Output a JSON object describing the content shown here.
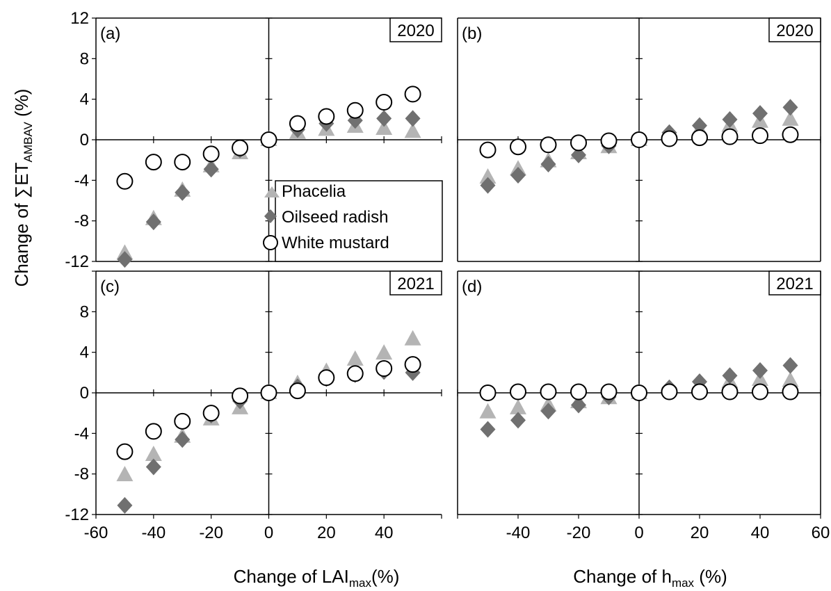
{
  "figure": {
    "ylabel_main": "Change of ∑ET",
    "ylabel_sub": "AMBAV",
    "ylabel_unit": " (%)",
    "xlabel_left_main": "Change of LAI",
    "xlabel_left_sub": "max",
    "xlabel_left_unit": "(%)",
    "xlabel_right_main": "Change of h",
    "xlabel_right_sub": "max",
    "xlabel_right_unit": " (%)"
  },
  "legend": {
    "items": [
      {
        "label": "Phacelia",
        "marker": "triangle",
        "color": "#b4b4b4"
      },
      {
        "label": "Oilseed radish",
        "marker": "diamond",
        "color": "#707070"
      },
      {
        "label": "White mustard",
        "marker": "circle-open",
        "color": "#000000"
      }
    ]
  },
  "chart_data": [
    {
      "type": "scatter",
      "panel_label": "(a)",
      "year": "2020",
      "x": [
        -50,
        -40,
        -30,
        -20,
        -10,
        0,
        10,
        20,
        30,
        40,
        50
      ],
      "xlim": [
        -60,
        60
      ],
      "ylim": [
        -12,
        12
      ],
      "yticks": [
        -12,
        -8,
        -4,
        0,
        4,
        8,
        12
      ],
      "xticks": [],
      "series": [
        {
          "name": "Phacelia",
          "values": [
            -11.2,
            -7.8,
            -5.0,
            -2.6,
            -1.3,
            0,
            0.7,
            1.0,
            1.3,
            1.1,
            0.8
          ]
        },
        {
          "name": "Oilseed radish",
          "values": [
            -11.8,
            -8.1,
            -5.2,
            -2.9,
            -1.0,
            0,
            1.0,
            1.6,
            1.9,
            2.1,
            2.1
          ]
        },
        {
          "name": "White mustard",
          "values": [
            -4.1,
            -2.2,
            -2.2,
            -1.4,
            -0.8,
            0,
            1.6,
            2.3,
            2.9,
            3.7,
            4.5
          ]
        }
      ]
    },
    {
      "type": "scatter",
      "panel_label": "(b)",
      "year": "2020",
      "x": [
        -50,
        -40,
        -30,
        -20,
        -10,
        0,
        10,
        20,
        30,
        40,
        50
      ],
      "xlim": [
        -60,
        60
      ],
      "ylim": [
        -12,
        12
      ],
      "yticks": [],
      "xticks": [],
      "series": [
        {
          "name": "Phacelia",
          "values": [
            -3.7,
            -2.9,
            -2.1,
            -1.3,
            -0.7,
            0,
            0.5,
            1.0,
            1.4,
            1.8,
            2.0
          ]
        },
        {
          "name": "Oilseed radish",
          "values": [
            -4.5,
            -3.5,
            -2.4,
            -1.5,
            -0.6,
            0,
            0.7,
            1.4,
            2.0,
            2.6,
            3.2
          ]
        },
        {
          "name": "White mustard",
          "values": [
            -1.0,
            -0.7,
            -0.5,
            -0.3,
            -0.1,
            0,
            0.1,
            0.2,
            0.3,
            0.4,
            0.5
          ]
        }
      ]
    },
    {
      "type": "scatter",
      "panel_label": "(c)",
      "year": "2021",
      "x": [
        -50,
        -40,
        -30,
        -20,
        -10,
        0,
        10,
        20,
        30,
        40,
        50
      ],
      "xlim": [
        -60,
        60
      ],
      "ylim": [
        -12,
        12
      ],
      "yticks": [
        -12,
        -8,
        -4,
        0,
        4,
        8
      ],
      "xticks": [
        -60,
        -40,
        -20,
        0,
        20,
        40
      ],
      "series": [
        {
          "name": "Phacelia",
          "values": [
            -8.1,
            -6.1,
            -4.3,
            -2.6,
            -1.5,
            0,
            0.9,
            2.1,
            3.3,
            3.9,
            5.3
          ]
        },
        {
          "name": "Oilseed radish",
          "values": [
            -11.1,
            -7.3,
            -4.6,
            -2.2,
            -0.8,
            0,
            0.6,
            1.4,
            1.8,
            2.1,
            2.0
          ]
        },
        {
          "name": "White mustard",
          "values": [
            -5.8,
            -3.8,
            -2.8,
            -2.0,
            -0.3,
            0,
            0.2,
            1.5,
            1.9,
            2.4,
            2.8
          ]
        }
      ]
    },
    {
      "type": "scatter",
      "panel_label": "(d)",
      "year": "2021",
      "x": [
        -50,
        -40,
        -30,
        -20,
        -10,
        0,
        10,
        20,
        30,
        40,
        50
      ],
      "xlim": [
        -60,
        60
      ],
      "ylim": [
        -12,
        12
      ],
      "yticks": [],
      "xticks": [
        -40,
        -20,
        0,
        20,
        40,
        60
      ],
      "series": [
        {
          "name": "Phacelia",
          "values": [
            -1.9,
            -1.5,
            -1.2,
            -0.9,
            -0.5,
            0,
            0.4,
            0.8,
            1.1,
            1.3,
            1.2
          ]
        },
        {
          "name": "Oilseed radish",
          "values": [
            -3.6,
            -2.7,
            -1.8,
            -1.2,
            -0.4,
            0,
            0.5,
            1.1,
            1.7,
            2.2,
            2.7
          ]
        },
        {
          "name": "White mustard",
          "values": [
            0.0,
            0.1,
            0.1,
            0.1,
            0.1,
            0,
            0.1,
            0.1,
            0.1,
            0.1,
            0.1
          ]
        }
      ]
    }
  ]
}
